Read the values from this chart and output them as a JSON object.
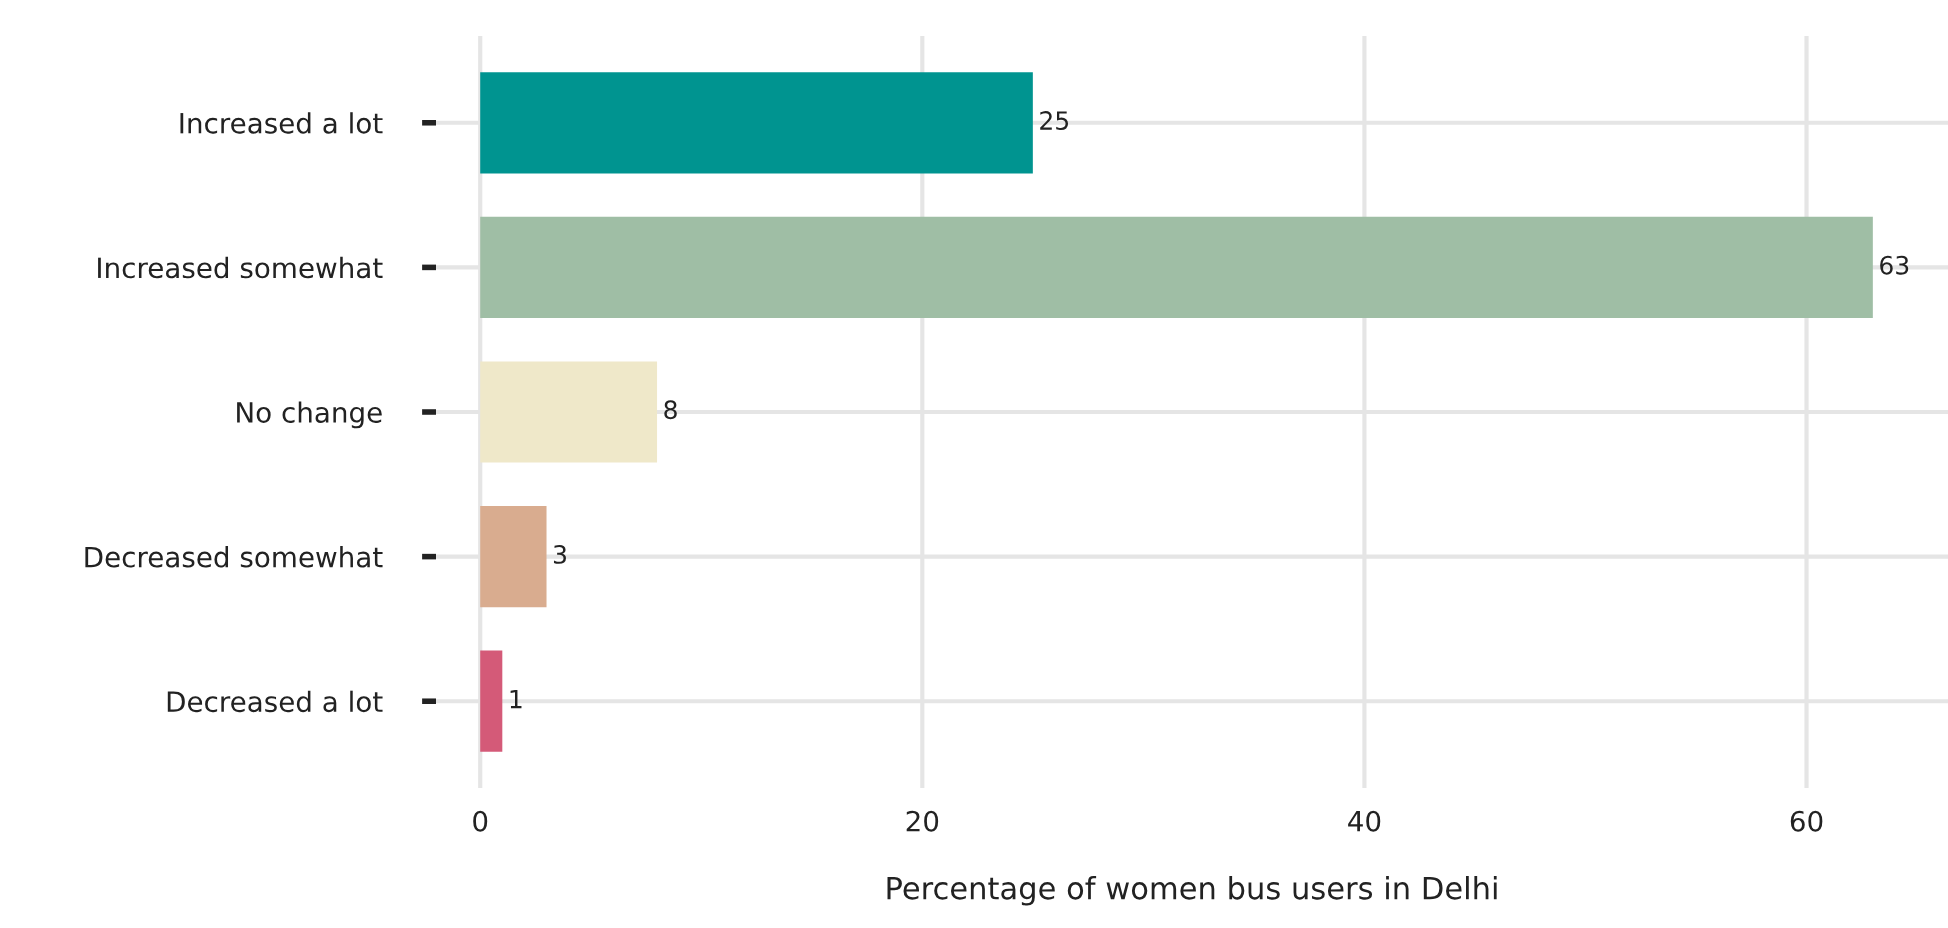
{
  "chart_data": {
    "type": "bar",
    "orientation": "horizontal",
    "categories": [
      "Increased a lot",
      "Increased somewhat",
      "No change",
      "Decreased somewhat",
      "Decreased a lot"
    ],
    "values": [
      25,
      63,
      8,
      3,
      1
    ],
    "colors": [
      "#009490",
      "#9fbea5",
      "#efe8c9",
      "#d9ac8f",
      "#d45a78"
    ],
    "xlabel": "Percentage of women bus users in Delhi",
    "xlim": [
      -2,
      66.4
    ],
    "xticks": [
      0,
      20,
      40,
      60
    ],
    "grid": true,
    "data_labels": true
  }
}
